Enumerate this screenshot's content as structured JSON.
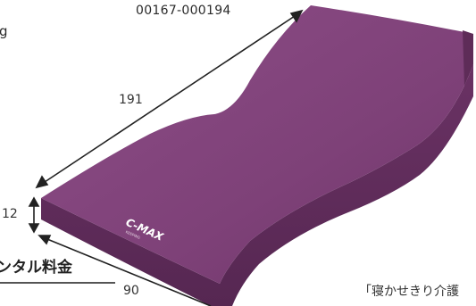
{
  "product": {
    "code": "00167-000194",
    "code_suffix_fragment": "g",
    "brand_logo": "C-MAX",
    "brand_sub": "KEEPING",
    "body_color": "#7a3d73",
    "edge_color": "#5e2c58",
    "top_color": "#8a4a84"
  },
  "dimensions": {
    "length": "191",
    "thickness": "12",
    "width": "90"
  },
  "labels": {
    "rental": "ンタル料金",
    "caption": "「寝かせきり介護"
  }
}
